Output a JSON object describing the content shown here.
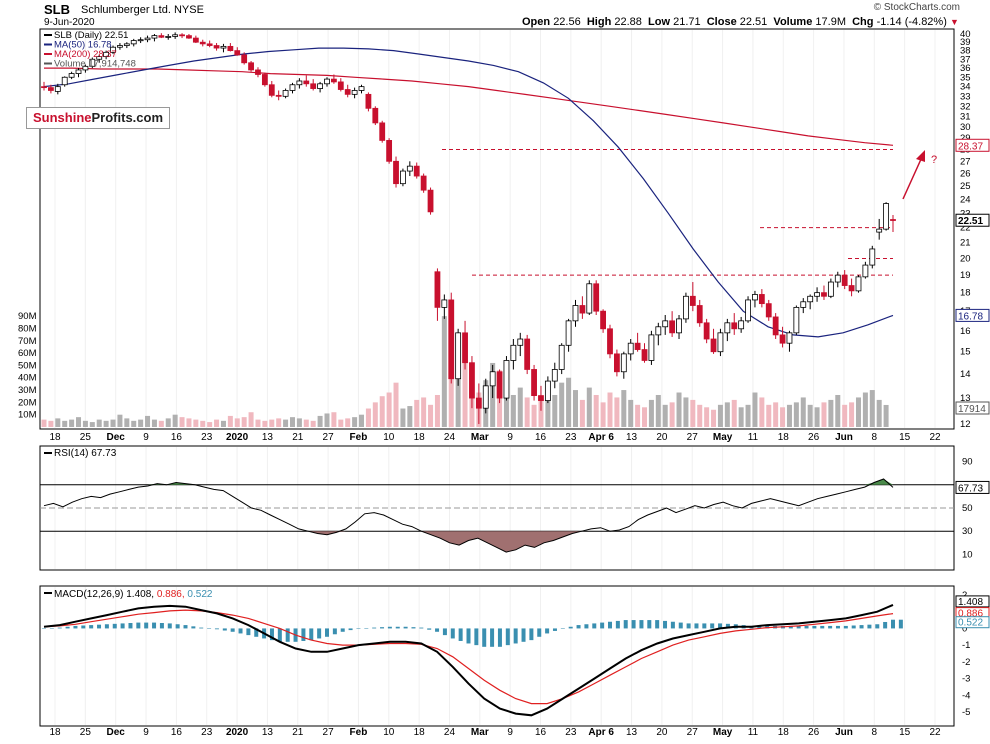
{
  "header": {
    "symbol": "SLB",
    "company": "Schlumberger Ltd.",
    "exchange": "NYSE",
    "date": "9-Jun-2020",
    "copyright": "© StockCharts.com",
    "quote": {
      "open_label": "Open",
      "open": "22.56",
      "high_label": "High",
      "high": "22.88",
      "low_label": "Low",
      "low": "21.71",
      "close_label": "Close",
      "close": "22.51",
      "volume_label": "Volume",
      "volume": "17.9M",
      "chg_label": "Chg",
      "chg": "-1.14 (-4.82%)"
    }
  },
  "logo": {
    "part1": "Sunshine",
    "part2": "Profits.com"
  },
  "colors": {
    "up": "#ffffff",
    "down": "#c8102e",
    "ma50": "#1a237e",
    "ma200": "#c8102e",
    "macd": "#000000",
    "signal": "#e02020",
    "hist": "#3a8fb0",
    "rsi_fill": "#a07070",
    "vol": "#b0b0b0"
  },
  "chart_data": [
    {
      "type": "candlestick",
      "title": "SLB (Daily) 22.51",
      "legend": [
        "SLB (Daily) 22.51",
        "MA(50) 16.78",
        "MA(200) 28.37",
        "Volume 17,914,748"
      ],
      "x_tick_labels": [
        "18",
        "25",
        "Dec",
        "9",
        "16",
        "23",
        "2020",
        "13",
        "21",
        "27",
        "Feb",
        "10",
        "18",
        "24",
        "Mar",
        "9",
        "16",
        "23",
        "Apr 6",
        "13",
        "20",
        "27",
        "May",
        "11",
        "18",
        "26",
        "Jun",
        "8",
        "15",
        "22"
      ],
      "y_tick_labels": [
        "40",
        "39",
        "38",
        "37",
        "36",
        "35",
        "34",
        "33",
        "32",
        "31",
        "30",
        "29",
        "28",
        "27",
        "26",
        "25",
        "24",
        "23",
        "22",
        "21",
        "20",
        "19",
        "18",
        "17",
        "16",
        "15",
        "14",
        "13",
        "12"
      ],
      "ylim": [
        12,
        40
      ],
      "scale": "log",
      "volume_axis_labels": [
        "90M",
        "80M",
        "70M",
        "60M",
        "50M",
        "40M",
        "30M",
        "20M",
        "10M"
      ],
      "price_labels": [
        "28.37",
        "22.51",
        "16.78",
        "17914"
      ],
      "annotation": "?",
      "horizontal_levels": [
        28.0,
        22.0,
        20.0,
        19.0
      ],
      "ohlc": [
        [
          34.0,
          34.5,
          33.6,
          33.9
        ],
        [
          33.9,
          34.2,
          33.3,
          33.6
        ],
        [
          33.5,
          34.3,
          33.2,
          34.0
        ],
        [
          34.2,
          35.1,
          34.0,
          35.0
        ],
        [
          35.0,
          35.6,
          34.8,
          35.4
        ],
        [
          35.4,
          36.0,
          35.0,
          35.8
        ],
        [
          35.8,
          36.4,
          35.5,
          36.2
        ],
        [
          36.2,
          37.2,
          36.0,
          37.0
        ],
        [
          37.0,
          37.5,
          36.6,
          37.3
        ],
        [
          37.3,
          38.0,
          37.0,
          37.8
        ],
        [
          37.8,
          38.6,
          37.6,
          38.4
        ],
        [
          38.4,
          38.9,
          38.1,
          38.6
        ],
        [
          38.6,
          39.0,
          38.3,
          38.8
        ],
        [
          38.8,
          39.4,
          38.5,
          39.2
        ],
        [
          39.2,
          39.6,
          38.9,
          39.3
        ],
        [
          39.3,
          39.8,
          39.0,
          39.5
        ],
        [
          39.5,
          40.0,
          39.1,
          39.8
        ],
        [
          39.8,
          40.1,
          39.5,
          39.6
        ],
        [
          39.6,
          40.0,
          39.3,
          39.7
        ],
        [
          39.7,
          40.2,
          39.4,
          39.9
        ],
        [
          39.9,
          40.1,
          39.5,
          39.8
        ],
        [
          39.8,
          40.0,
          39.4,
          39.5
        ],
        [
          39.5,
          39.8,
          38.9,
          39.0
        ],
        [
          39.0,
          39.3,
          38.5,
          38.8
        ],
        [
          38.8,
          39.2,
          38.4,
          38.6
        ],
        [
          38.6,
          38.9,
          38.0,
          38.3
        ],
        [
          38.3,
          38.8,
          37.8,
          38.5
        ],
        [
          38.5,
          38.9,
          37.9,
          38.0
        ],
        [
          38.0,
          38.4,
          37.4,
          37.5
        ],
        [
          37.5,
          37.8,
          36.4,
          36.6
        ],
        [
          36.6,
          36.8,
          35.6,
          35.8
        ],
        [
          35.8,
          36.1,
          35.0,
          35.3
        ],
        [
          35.3,
          35.5,
          34.0,
          34.2
        ],
        [
          34.2,
          34.6,
          32.9,
          33.1
        ],
        [
          33.1,
          33.6,
          32.6,
          33.0
        ],
        [
          33.0,
          33.8,
          32.8,
          33.6
        ],
        [
          33.6,
          34.4,
          33.3,
          34.2
        ],
        [
          34.2,
          34.9,
          33.8,
          34.6
        ],
        [
          34.6,
          35.2,
          34.0,
          34.3
        ],
        [
          34.3,
          34.8,
          33.6,
          33.8
        ],
        [
          33.8,
          34.5,
          33.4,
          34.3
        ],
        [
          34.3,
          35.0,
          34.0,
          34.8
        ],
        [
          34.8,
          35.3,
          34.3,
          34.5
        ],
        [
          34.5,
          34.9,
          33.5,
          33.7
        ],
        [
          33.7,
          34.2,
          32.9,
          33.2
        ],
        [
          33.2,
          33.9,
          32.8,
          33.6
        ],
        [
          33.6,
          34.2,
          33.3,
          34.0
        ],
        [
          33.2,
          33.4,
          31.5,
          31.8
        ],
        [
          31.8,
          32.0,
          30.2,
          30.4
        ],
        [
          30.4,
          30.6,
          28.6,
          28.8
        ],
        [
          28.8,
          29.0,
          26.8,
          27.0
        ],
        [
          27.0,
          27.4,
          24.9,
          25.2
        ],
        [
          25.2,
          26.4,
          25.0,
          26.2
        ],
        [
          26.2,
          27.0,
          25.8,
          26.6
        ],
        [
          26.6,
          26.9,
          25.6,
          25.8
        ],
        [
          25.8,
          26.0,
          24.5,
          24.7
        ],
        [
          24.7,
          24.9,
          22.9,
          23.1
        ],
        [
          19.2,
          19.4,
          16.5,
          17.2
        ],
        [
          17.2,
          17.9,
          16.6,
          17.6
        ],
        [
          17.6,
          18.0,
          13.6,
          13.8
        ],
        [
          13.8,
          16.1,
          13.5,
          15.9
        ],
        [
          15.9,
          16.5,
          14.2,
          14.5
        ],
        [
          14.5,
          14.8,
          12.6,
          13.0
        ],
        [
          13.0,
          13.6,
          12.0,
          12.6
        ],
        [
          12.6,
          13.8,
          12.4,
          13.5
        ],
        [
          13.5,
          14.4,
          13.0,
          14.1
        ],
        [
          14.1,
          14.2,
          12.8,
          13.0
        ],
        [
          13.0,
          14.8,
          12.9,
          14.6
        ],
        [
          14.6,
          15.6,
          14.2,
          15.3
        ],
        [
          15.3,
          15.9,
          14.8,
          15.6
        ],
        [
          15.6,
          15.8,
          14.0,
          14.2
        ],
        [
          14.2,
          14.4,
          12.9,
          13.1
        ],
        [
          13.1,
          13.5,
          12.5,
          12.9
        ],
        [
          12.9,
          13.9,
          12.8,
          13.7
        ],
        [
          13.7,
          14.5,
          13.4,
          14.2
        ],
        [
          14.2,
          15.4,
          14.0,
          15.3
        ],
        [
          15.3,
          16.6,
          15.0,
          16.5
        ],
        [
          16.5,
          17.6,
          16.2,
          17.3
        ],
        [
          17.3,
          17.8,
          16.6,
          16.9
        ],
        [
          16.9,
          18.7,
          16.8,
          18.5
        ],
        [
          18.5,
          18.7,
          16.8,
          17.0
        ],
        [
          17.0,
          17.1,
          15.9,
          16.1
        ],
        [
          16.1,
          16.3,
          14.7,
          14.9
        ],
        [
          14.9,
          15.1,
          13.9,
          14.1
        ],
        [
          14.1,
          15.0,
          13.8,
          14.9
        ],
        [
          14.9,
          15.6,
          14.6,
          15.4
        ],
        [
          15.4,
          15.9,
          15.0,
          15.1
        ],
        [
          15.1,
          15.4,
          14.5,
          14.6
        ],
        [
          14.6,
          16.0,
          14.4,
          15.8
        ],
        [
          15.8,
          16.4,
          15.3,
          16.2
        ],
        [
          16.2,
          16.8,
          15.8,
          16.5
        ],
        [
          16.5,
          17.0,
          15.7,
          15.9
        ],
        [
          15.9,
          16.8,
          15.6,
          16.6
        ],
        [
          16.6,
          18.0,
          16.4,
          17.8
        ],
        [
          17.8,
          18.6,
          17.0,
          17.3
        ],
        [
          17.3,
          17.6,
          16.2,
          16.4
        ],
        [
          16.4,
          16.6,
          15.4,
          15.6
        ],
        [
          15.6,
          16.1,
          14.9,
          15.0
        ],
        [
          15.0,
          16.1,
          14.8,
          15.9
        ],
        [
          15.9,
          16.6,
          15.5,
          16.4
        ],
        [
          16.4,
          16.9,
          15.8,
          16.1
        ],
        [
          16.1,
          16.7,
          15.9,
          16.5
        ],
        [
          16.5,
          17.8,
          16.4,
          17.6
        ],
        [
          17.6,
          18.1,
          17.2,
          17.9
        ],
        [
          17.9,
          18.2,
          17.2,
          17.4
        ],
        [
          17.4,
          17.6,
          16.5,
          16.7
        ],
        [
          16.7,
          16.9,
          15.6,
          15.8
        ],
        [
          15.8,
          16.2,
          15.2,
          15.4
        ],
        [
          15.4,
          16.0,
          15.0,
          15.9
        ],
        [
          15.9,
          17.3,
          15.8,
          17.2
        ],
        [
          17.2,
          17.7,
          16.9,
          17.5
        ],
        [
          17.5,
          17.9,
          17.1,
          17.8
        ],
        [
          17.8,
          18.3,
          17.5,
          18.0
        ],
        [
          18.0,
          18.4,
          17.6,
          17.8
        ],
        [
          17.8,
          18.8,
          17.7,
          18.6
        ],
        [
          18.6,
          19.2,
          18.3,
          19.0
        ],
        [
          19.0,
          19.3,
          18.2,
          18.4
        ],
        [
          18.4,
          18.8,
          17.8,
          18.1
        ],
        [
          18.1,
          19.0,
          18.0,
          18.9
        ],
        [
          18.9,
          19.8,
          18.8,
          19.6
        ],
        [
          19.6,
          20.8,
          19.4,
          20.6
        ],
        [
          21.7,
          22.6,
          21.2,
          21.9
        ],
        [
          21.9,
          23.8,
          21.8,
          23.7
        ],
        [
          22.56,
          22.88,
          21.71,
          22.51
        ]
      ],
      "ma50": [
        34.0,
        34.3,
        34.8,
        35.3,
        35.8,
        36.3,
        36.8,
        37.2,
        37.6,
        37.9,
        38.1,
        38.3,
        38.3,
        38.2,
        38.0,
        37.6,
        37.2,
        36.8,
        36.3,
        35.6,
        34.4,
        32.8,
        30.6,
        28.2,
        25.6,
        23.0,
        20.6,
        18.6,
        17.0,
        16.2,
        15.8,
        15.7,
        15.9,
        16.3,
        16.78
      ],
      "ma200": [
        36.0,
        36.0,
        35.9,
        35.9,
        35.9,
        35.8,
        35.7,
        35.6,
        35.4,
        35.3,
        35.2,
        35.0,
        34.8,
        34.6,
        34.3,
        34.0,
        33.6,
        33.2,
        32.8,
        32.4,
        32.0,
        31.6,
        31.2,
        30.8,
        30.4,
        30.0,
        29.6,
        29.2,
        28.9,
        28.6,
        28.37
      ],
      "volume_millions": [
        6,
        5,
        7,
        5,
        6,
        8,
        5,
        4,
        6,
        5,
        6,
        10,
        7,
        5,
        6,
        9,
        6,
        5,
        7,
        10,
        8,
        7,
        6,
        5,
        4,
        6,
        5,
        9,
        7,
        8,
        12,
        6,
        5,
        6,
        7,
        6,
        8,
        7,
        6,
        5,
        9,
        11,
        12,
        6,
        7,
        8,
        10,
        15,
        20,
        25,
        28,
        36,
        15,
        17,
        22,
        24,
        18,
        26,
        90,
        42,
        56,
        60,
        36,
        28,
        38,
        52,
        46,
        42,
        26,
        32,
        24,
        18,
        22,
        28,
        26,
        36,
        40,
        30,
        22,
        32,
        26,
        20,
        28,
        24,
        30,
        22,
        18,
        16,
        22,
        26,
        18,
        20,
        28,
        24,
        22,
        18,
        16,
        14,
        18,
        20,
        22,
        16,
        18,
        28,
        24,
        18,
        20,
        16,
        18,
        20,
        24,
        18,
        16,
        20,
        22,
        26,
        18,
        20,
        24,
        28,
        30,
        22,
        17.9
      ]
    },
    {
      "type": "line",
      "title": "RSI(14) 67.73",
      "legend": [
        "RSI(14) 67.73"
      ],
      "y_tick_labels": [
        "90",
        "70",
        "50",
        "30",
        "10"
      ],
      "ylim": [
        0,
        100
      ],
      "levels": [
        70,
        50,
        30
      ],
      "last_label": "67.73",
      "values": [
        52,
        54,
        51,
        55,
        58,
        60,
        59,
        62,
        64,
        66,
        68,
        69,
        71,
        70,
        72,
        71,
        70,
        68,
        66,
        65,
        60,
        55,
        50,
        48,
        44,
        40,
        36,
        32,
        30,
        28,
        27,
        29,
        32,
        38,
        45,
        46,
        44,
        40,
        36,
        34,
        30,
        27,
        24,
        20,
        18,
        22,
        24,
        20,
        16,
        12,
        14,
        18,
        16,
        20,
        22,
        25,
        28,
        30,
        32,
        33,
        30,
        31,
        34,
        40,
        44,
        47,
        50,
        46,
        49,
        52,
        50,
        53,
        55,
        52,
        50,
        54,
        56,
        58,
        56,
        54,
        52,
        55,
        58,
        60,
        62,
        64,
        66,
        68,
        72,
        75,
        67.73
      ]
    },
    {
      "type": "line",
      "title": "MACD(12,26,9) 1.408, 0.886, 0.522",
      "legend": [
        "MACD(12,26,9) 1.408",
        "0.886",
        "0.522"
      ],
      "y_tick_labels": [
        "2",
        "1",
        "0",
        "-1",
        "-2",
        "-3",
        "-4",
        "-5"
      ],
      "ylim": [
        -5.6,
        2.3
      ],
      "last_labels": [
        "1.408",
        "0.886",
        "0.522"
      ],
      "macd": [
        0.1,
        0.2,
        0.4,
        0.6,
        0.8,
        1.0,
        1.2,
        1.3,
        1.35,
        1.3,
        1.1,
        0.9,
        0.6,
        0.2,
        -0.3,
        -0.8,
        -1.2,
        -1.4,
        -1.4,
        -1.2,
        -1.0,
        -0.9,
        -0.8,
        -0.8,
        -0.9,
        -1.4,
        -2.3,
        -3.3,
        -4.2,
        -4.8,
        -5.1,
        -5.2,
        -4.8,
        -4.2,
        -3.6,
        -3.0,
        -2.4,
        -1.8,
        -1.3,
        -0.9,
        -0.6,
        -0.4,
        -0.2,
        0.0,
        0.1,
        0.1,
        0.2,
        0.25,
        0.3,
        0.4,
        0.5,
        0.6,
        0.8,
        1.0,
        1.408
      ],
      "signal": [
        0.1,
        0.15,
        0.25,
        0.4,
        0.55,
        0.7,
        0.85,
        0.95,
        1.05,
        1.1,
        1.05,
        0.95,
        0.8,
        0.6,
        0.3,
        0.0,
        -0.4,
        -0.7,
        -0.9,
        -1.0,
        -1.0,
        -0.95,
        -0.9,
        -0.9,
        -0.95,
        -1.2,
        -1.7,
        -2.4,
        -3.1,
        -3.7,
        -4.2,
        -4.5,
        -4.5,
        -4.2,
        -3.8,
        -3.3,
        -2.8,
        -2.3,
        -1.8,
        -1.4,
        -1.0,
        -0.7,
        -0.5,
        -0.3,
        -0.15,
        -0.05,
        0.05,
        0.1,
        0.15,
        0.25,
        0.35,
        0.45,
        0.6,
        0.75,
        0.886
      ],
      "histogram": [
        0,
        0.05,
        0.15,
        0.2,
        0.25,
        0.3,
        0.35,
        0.35,
        0.3,
        0.2,
        0.05,
        -0.05,
        -0.2,
        -0.4,
        -0.6,
        -0.8,
        -0.8,
        -0.7,
        -0.5,
        -0.2,
        0,
        0.05,
        0.1,
        0.1,
        0.05,
        -0.2,
        -0.6,
        -0.9,
        -1.1,
        -1.1,
        -0.9,
        -0.7,
        -0.3,
        0,
        0.2,
        0.3,
        0.4,
        0.5,
        0.5,
        0.5,
        0.4,
        0.3,
        0.3,
        0.3,
        0.25,
        0.15,
        0.15,
        0.15,
        0.15,
        0.15,
        0.15,
        0.15,
        0.2,
        0.25,
        0.522
      ]
    }
  ]
}
